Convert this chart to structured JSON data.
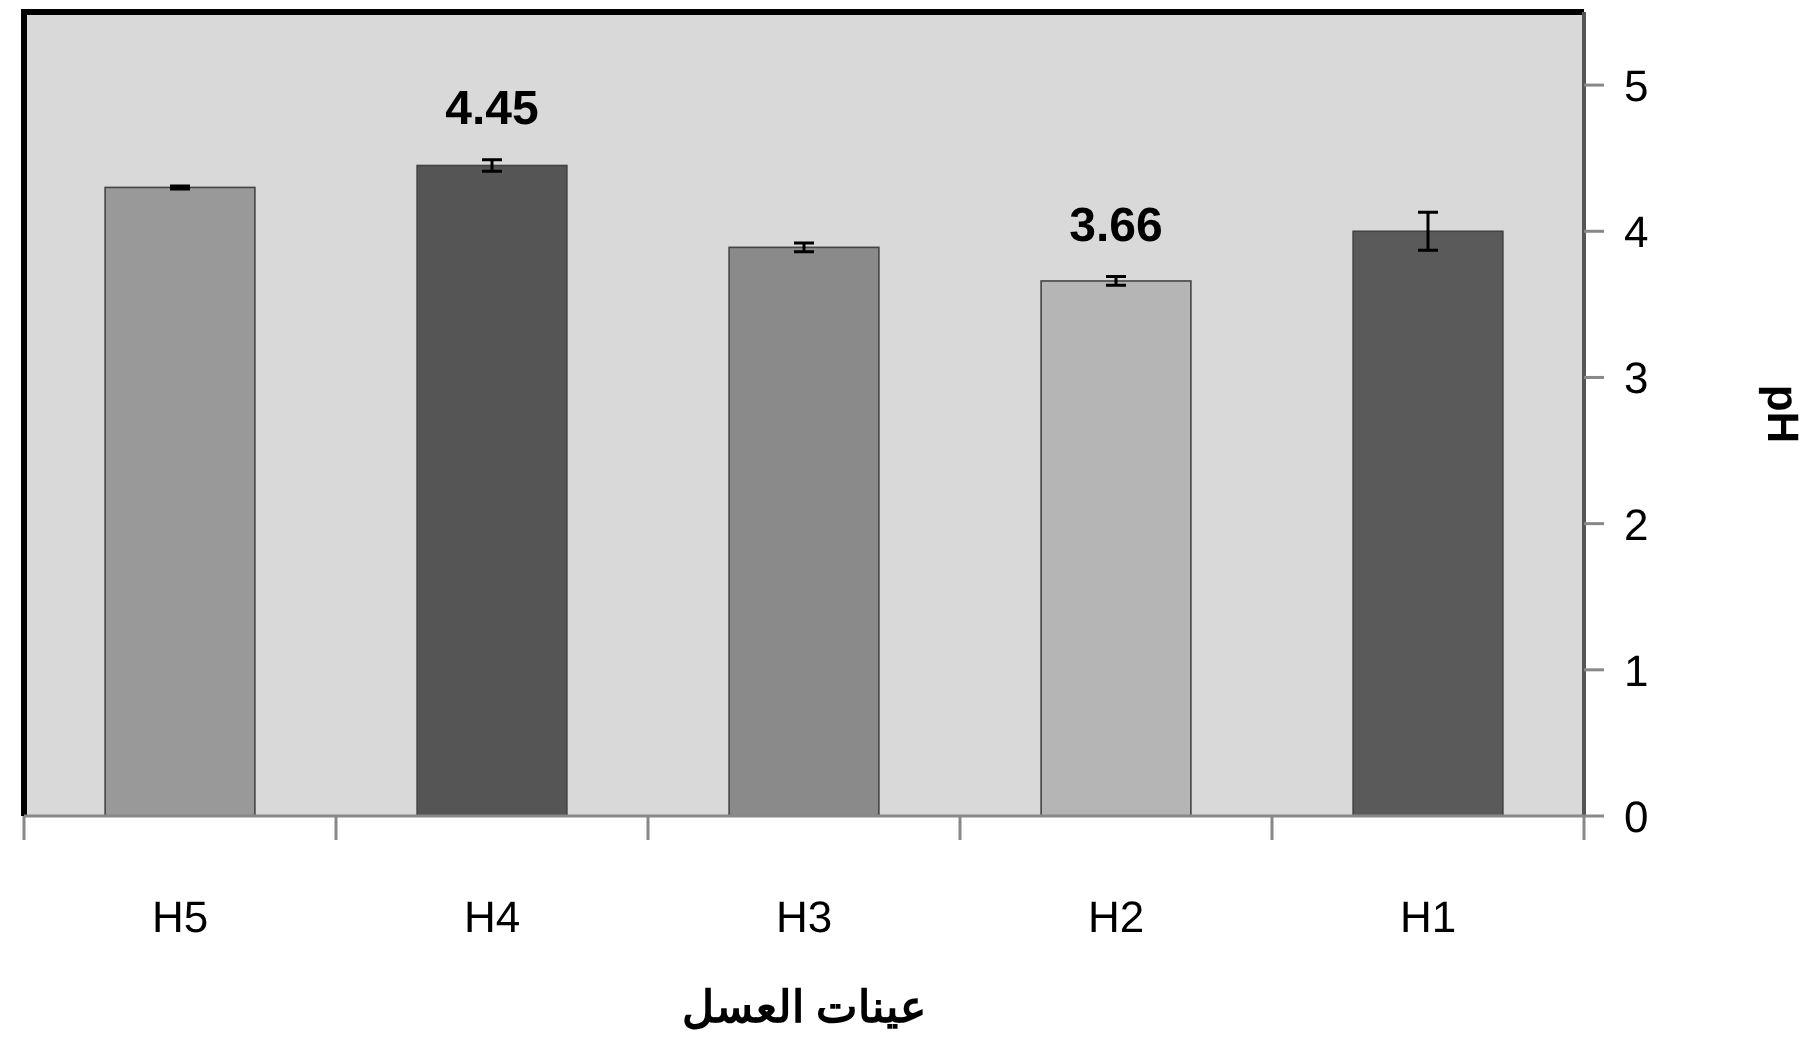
{
  "chart_data": {
    "type": "bar",
    "xlabel": "عينات العسل",
    "ylabel": "pH",
    "categories": [
      "H5",
      "H4",
      "H3",
      "H2",
      "H1"
    ],
    "values": [
      4.3,
      4.45,
      3.89,
      3.66,
      4.0
    ],
    "errors": [
      0.01,
      0.04,
      0.03,
      0.03,
      0.13
    ],
    "colors": [
      "#999999",
      "#555555",
      "#8a8a8a",
      "#b5b5b5",
      "#5a5a5a"
    ],
    "value_labels": [
      null,
      "4.45",
      null,
      "3.66",
      null
    ],
    "ylim": [
      0,
      5.5
    ],
    "yticks": [
      0,
      1,
      2,
      3,
      4,
      5
    ],
    "grid": false
  }
}
